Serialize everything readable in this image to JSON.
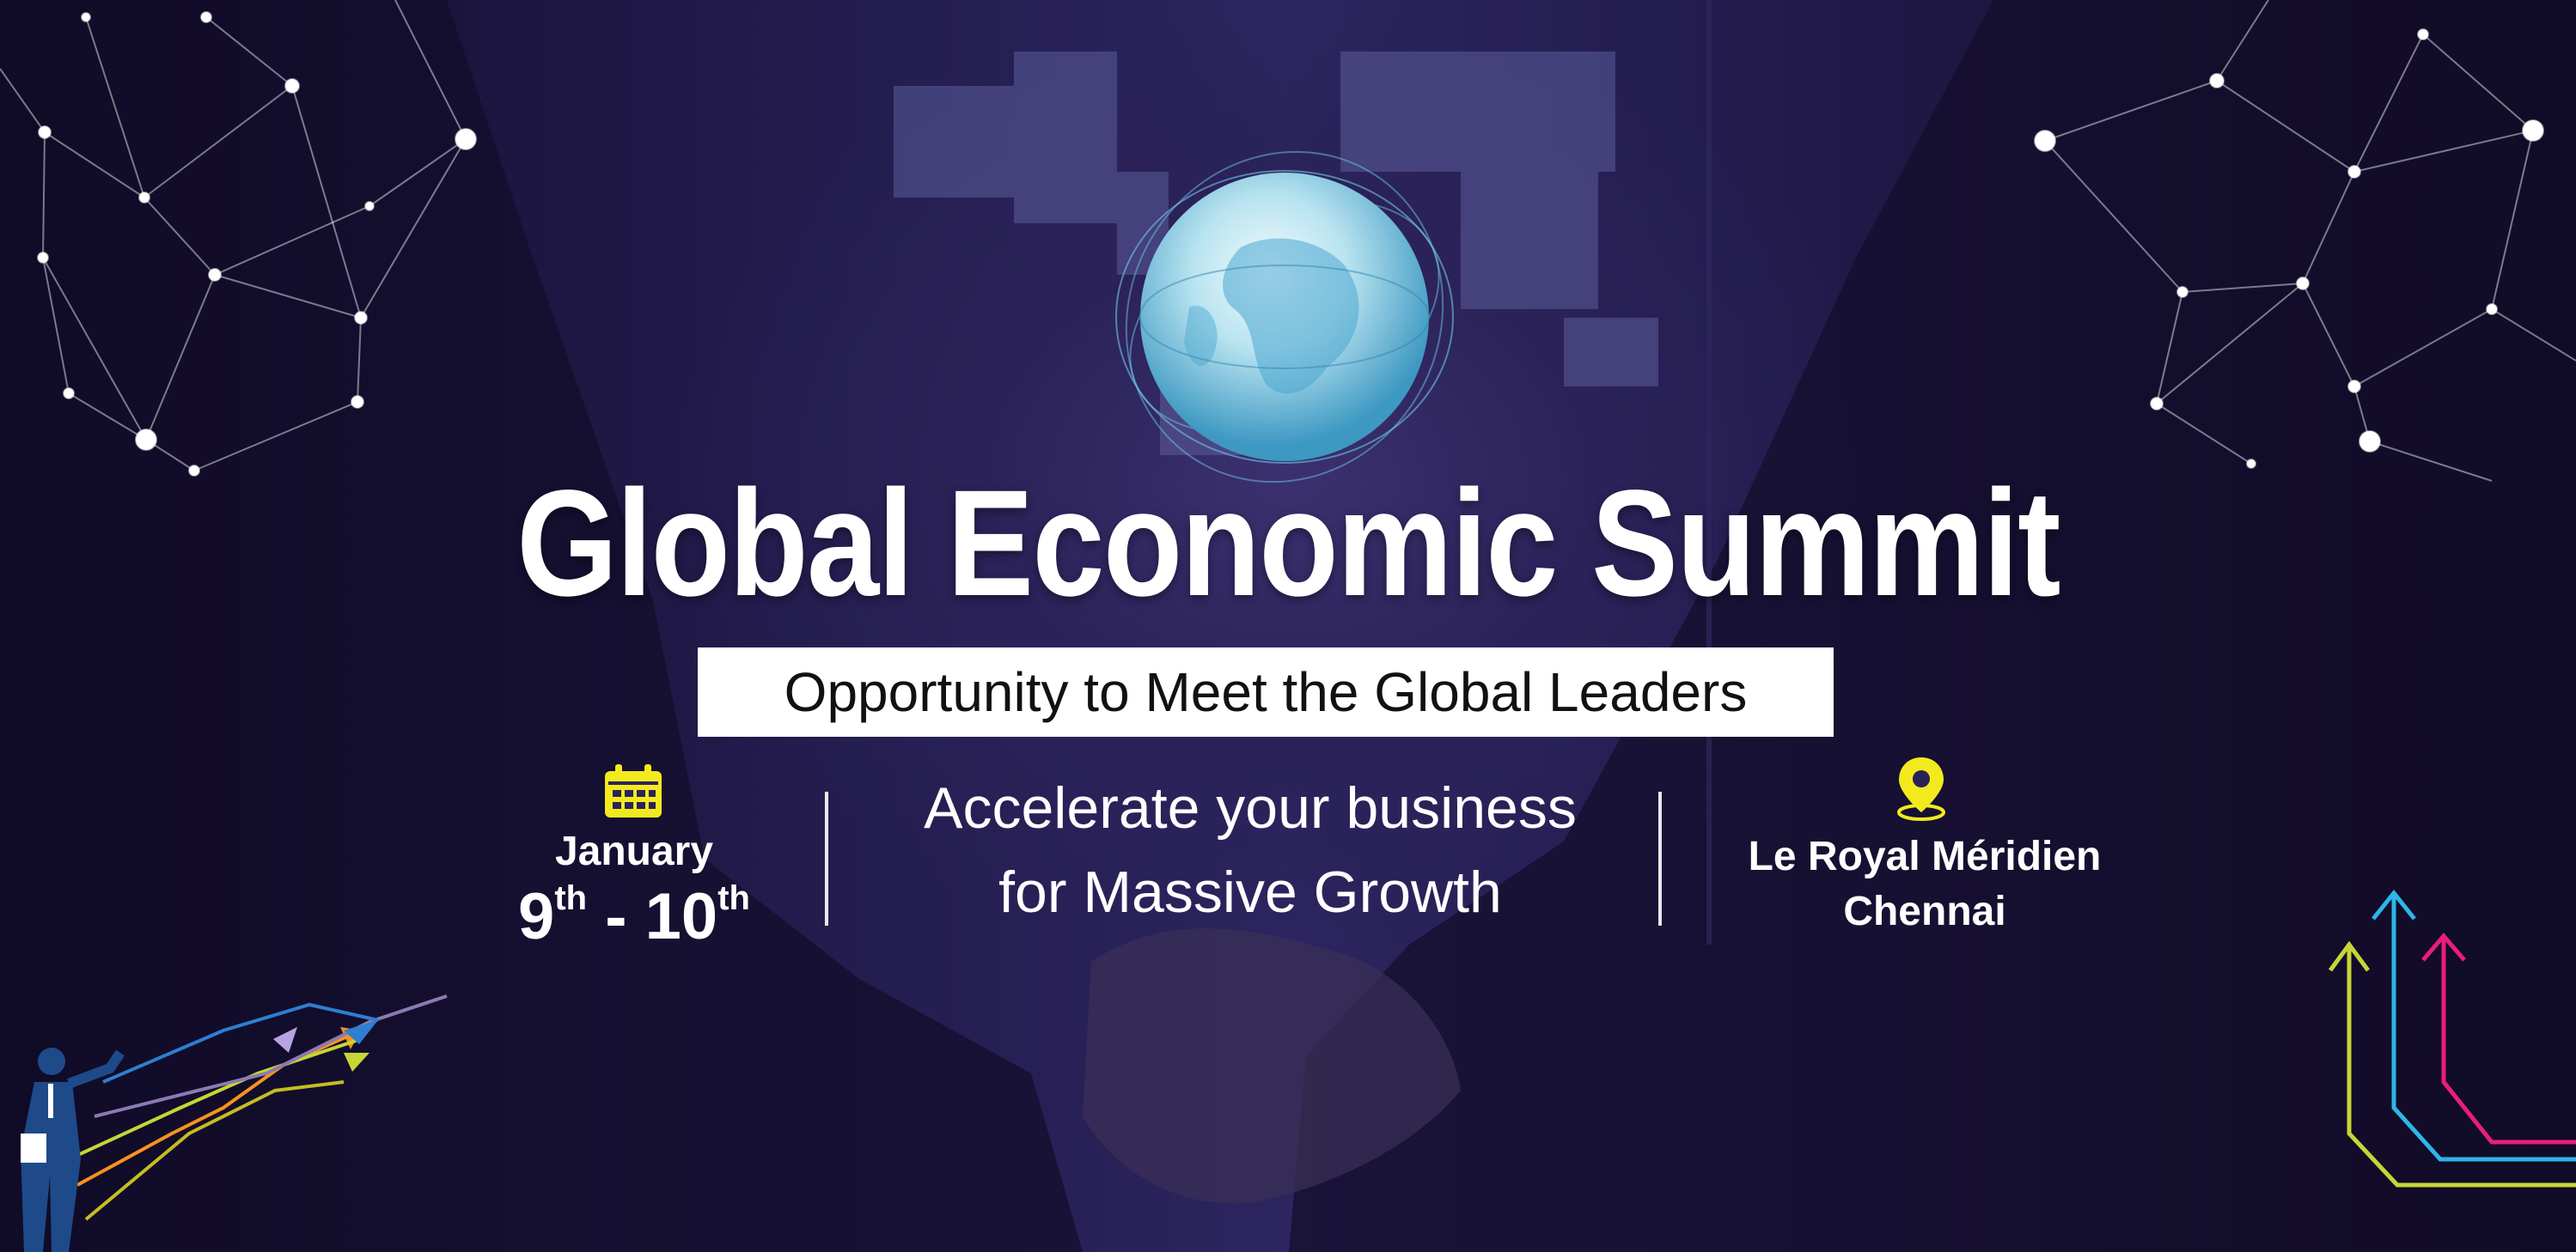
{
  "title": "Global Economic Summit",
  "tagline": "Opportunity to Meet the Global Leaders",
  "date": {
    "month": "January",
    "day_start": "9",
    "day_start_suffix": "th",
    "separator": " - ",
    "day_end": "10",
    "day_end_suffix": "th"
  },
  "headline": {
    "line1": "Accelerate your business",
    "line2": "for Massive Growth"
  },
  "venue": {
    "line1": "Le Royal Méridien",
    "line2": "Chennai"
  },
  "icons": {
    "calendar": "calendar-icon",
    "location": "location-pin-icon",
    "globe": "globe-icon"
  },
  "colors": {
    "background": "#2a2258",
    "accent_yellow": "#f2ea1f",
    "tagline_bg": "#ffffff",
    "text": "#ffffff"
  }
}
